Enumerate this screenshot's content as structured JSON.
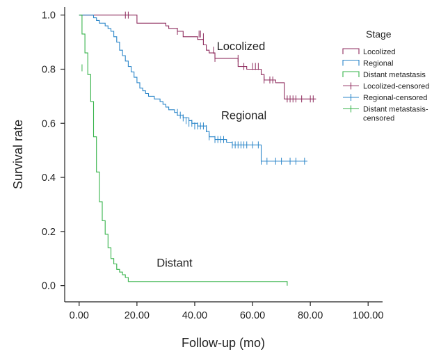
{
  "chart_data": {
    "type": "line",
    "xlabel": "Follow-up (mo)",
    "ylabel": "Survival rate",
    "xlim": [
      -5,
      105
    ],
    "ylim": [
      -0.06,
      1.03
    ],
    "xticks": [
      "0.00",
      "20.00",
      "40.00",
      "60.00",
      "80.00",
      "100.00"
    ],
    "xtick_values": [
      0,
      20,
      40,
      60,
      80,
      100
    ],
    "yticks": [
      "0.0",
      "0.2",
      "0.4",
      "0.6",
      "0.8",
      "1.0"
    ],
    "ytick_values": [
      0,
      0.2,
      0.4,
      0.6,
      0.8,
      1.0
    ],
    "grid": false,
    "legend": {
      "title": "Stage",
      "position": "top-right",
      "entries": [
        {
          "label": "Locolized",
          "color": "#8e2b5d",
          "kind": "line"
        },
        {
          "label": "Regional",
          "color": "#2b86c9",
          "kind": "line"
        },
        {
          "label": "Distant metastasis",
          "color": "#36b34a",
          "kind": "line"
        },
        {
          "label": "Locolized-censored",
          "color": "#8e2b5d",
          "kind": "censor"
        },
        {
          "label": "Regional-censored",
          "color": "#2b86c9",
          "kind": "censor"
        },
        {
          "label": "Distant metastasis-",
          "label2": "censored",
          "color": "#36b34a",
          "kind": "censor"
        }
      ]
    },
    "annotations": [
      {
        "text": "Locolized",
        "x": 56,
        "y": 0.87
      },
      {
        "text": "Regional",
        "x": 57,
        "y": 0.615
      },
      {
        "text": "Distant",
        "x": 33,
        "y": 0.07
      }
    ],
    "series": [
      {
        "name": "Locolized",
        "color": "#8e2b5d",
        "steps": [
          [
            0,
            1.0
          ],
          [
            20,
            0.97
          ],
          [
            30,
            0.96
          ],
          [
            31,
            0.95
          ],
          [
            34,
            0.94
          ],
          [
            36,
            0.92
          ],
          [
            41,
            0.91
          ],
          [
            43,
            0.89
          ],
          [
            44,
            0.87
          ],
          [
            45,
            0.86
          ],
          [
            47,
            0.84
          ],
          [
            55,
            0.81
          ],
          [
            58,
            0.8
          ],
          [
            63,
            0.78
          ],
          [
            64,
            0.76
          ],
          [
            68,
            0.75
          ],
          [
            71,
            0.69
          ],
          [
            82,
            0.69
          ]
        ],
        "censored": [
          [
            16,
            1.0
          ],
          [
            17,
            1.0
          ],
          [
            34,
            0.94
          ],
          [
            41.5,
            0.93
          ],
          [
            42,
            0.93
          ],
          [
            43,
            0.92
          ],
          [
            46.5,
            0.87
          ],
          [
            47,
            0.84
          ],
          [
            55,
            0.84
          ],
          [
            57,
            0.81
          ],
          [
            60,
            0.81
          ],
          [
            61,
            0.81
          ],
          [
            62,
            0.81
          ],
          [
            64,
            0.76
          ],
          [
            66,
            0.76
          ],
          [
            67,
            0.76
          ],
          [
            72,
            0.69
          ],
          [
            73,
            0.69
          ],
          [
            74,
            0.69
          ],
          [
            75,
            0.69
          ],
          [
            77,
            0.69
          ],
          [
            80,
            0.69
          ],
          [
            81,
            0.69
          ]
        ]
      },
      {
        "name": "Regional",
        "color": "#2b86c9",
        "steps": [
          [
            0,
            1.0
          ],
          [
            5,
            0.99
          ],
          [
            6,
            0.98
          ],
          [
            7,
            0.97
          ],
          [
            9,
            0.96
          ],
          [
            10,
            0.95
          ],
          [
            11,
            0.94
          ],
          [
            12,
            0.92
          ],
          [
            13,
            0.9
          ],
          [
            14,
            0.87
          ],
          [
            15,
            0.85
          ],
          [
            16,
            0.83
          ],
          [
            17,
            0.81
          ],
          [
            18,
            0.79
          ],
          [
            19,
            0.77
          ],
          [
            20,
            0.75
          ],
          [
            21,
            0.73
          ],
          [
            22,
            0.72
          ],
          [
            23,
            0.71
          ],
          [
            24,
            0.7
          ],
          [
            26,
            0.69
          ],
          [
            28,
            0.68
          ],
          [
            29,
            0.67
          ],
          [
            30,
            0.66
          ],
          [
            31,
            0.65
          ],
          [
            33,
            0.64
          ],
          [
            34,
            0.63
          ],
          [
            36,
            0.62
          ],
          [
            38,
            0.61
          ],
          [
            39,
            0.6
          ],
          [
            41,
            0.59
          ],
          [
            44,
            0.57
          ],
          [
            45,
            0.55
          ],
          [
            47,
            0.54
          ],
          [
            51,
            0.53
          ],
          [
            53,
            0.52
          ],
          [
            63,
            0.46
          ],
          [
            79,
            0.46
          ]
        ],
        "censored": [
          [
            34,
            0.64
          ],
          [
            35,
            0.63
          ],
          [
            36,
            0.62
          ],
          [
            37,
            0.61
          ],
          [
            38,
            0.6
          ],
          [
            39,
            0.6
          ],
          [
            40,
            0.59
          ],
          [
            41,
            0.59
          ],
          [
            42,
            0.59
          ],
          [
            43,
            0.59
          ],
          [
            44,
            0.58
          ],
          [
            45,
            0.55
          ],
          [
            47,
            0.54
          ],
          [
            48,
            0.54
          ],
          [
            49,
            0.54
          ],
          [
            50,
            0.54
          ],
          [
            53,
            0.52
          ],
          [
            54,
            0.52
          ],
          [
            55,
            0.52
          ],
          [
            56,
            0.52
          ],
          [
            57,
            0.52
          ],
          [
            58,
            0.52
          ],
          [
            60,
            0.52
          ],
          [
            62,
            0.52
          ],
          [
            63,
            0.46
          ],
          [
            65,
            0.46
          ],
          [
            68,
            0.46
          ],
          [
            70,
            0.46
          ],
          [
            73,
            0.46
          ],
          [
            75,
            0.46
          ],
          [
            78,
            0.46
          ]
        ]
      },
      {
        "name": "Distant metastasis",
        "color": "#36b34a",
        "steps": [
          [
            0,
            1.0
          ],
          [
            1,
            0.93
          ],
          [
            2,
            0.86
          ],
          [
            3,
            0.78
          ],
          [
            4,
            0.68
          ],
          [
            5,
            0.55
          ],
          [
            6,
            0.42
          ],
          [
            7,
            0.31
          ],
          [
            8,
            0.24
          ],
          [
            9,
            0.19
          ],
          [
            10,
            0.14
          ],
          [
            11,
            0.1
          ],
          [
            12,
            0.08
          ],
          [
            13,
            0.06
          ],
          [
            14,
            0.05
          ],
          [
            15,
            0.04
          ],
          [
            16,
            0.03
          ],
          [
            17,
            0.015
          ],
          [
            72,
            0.015
          ],
          [
            72,
            0.0
          ]
        ],
        "censored": [
          [
            1,
            0.805
          ]
        ]
      }
    ]
  }
}
